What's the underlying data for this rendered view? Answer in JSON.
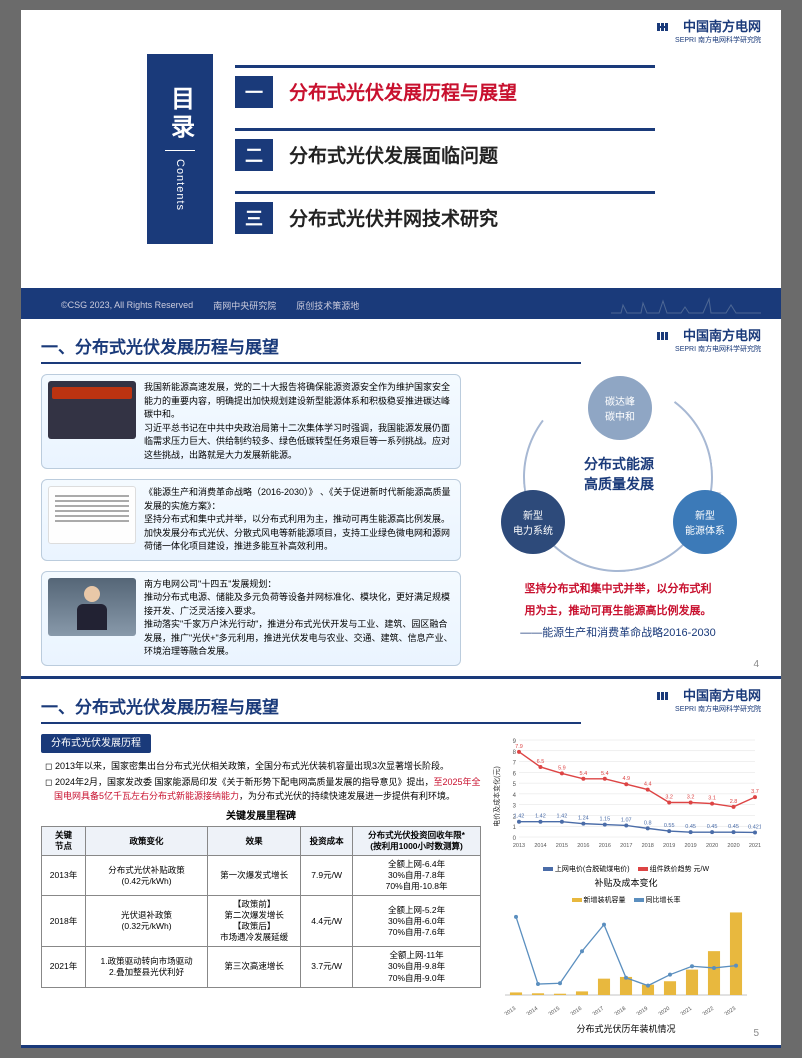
{
  "brand": {
    "name": "中国南方电网",
    "sub": "SEPRI 南方电网科学研究院"
  },
  "slide1": {
    "toc_han": "目录",
    "toc_eng": "Contents",
    "items": [
      {
        "num": "一",
        "label": "分布式光伏发展历程与展望",
        "color": "#c8102e"
      },
      {
        "num": "二",
        "label": "分布式光伏发展面临问题",
        "color": "#222222"
      },
      {
        "num": "三",
        "label": "分布式光伏并网技术研究",
        "color": "#222222"
      }
    ],
    "footer": {
      "copyright": "©CSG 2023, All Rights Reserved",
      "org1": "南网中央研究院",
      "org2": "原创技术策源地"
    }
  },
  "slide2": {
    "title": "一、分布式光伏发展历程与展望",
    "cards": [
      {
        "p1": "我国新能源高速发展，党的二十大报告将确保能源资源安全作为维护国家安全能力的重要内容，明确提出加快规划建设新型能源体系和积极稳妥推进碳达峰碳中和。",
        "p2": "习近平总书记在中共中央政治局第十二次集体学习时强调，我国能源发展仍面临需求压力巨大、供给制约较多、绿色低碳转型任务艰巨等一系列挑战。应对这些挑战，出路就是大力发展新能源。"
      },
      {
        "p1": "《能源生产和消费革命战略（2016-2030）》 、《关于促进新时代新能源高质量发展的实施方案》：",
        "p2": "坚持分布式和集中式并举，以分布式利用为主，推动可再生能源高比例发展。",
        "p3": "加快发展分布式光伏、分散式风电等新能源项目，支持工业绿色微电网和源网荷储一体化项目建设，推进多能互补高效利用。"
      },
      {
        "p1": "南方电网公司\"十四五\"发展规划：",
        "p2": "推动分布式电源、储能及多元负荷等设备并网标准化、模块化，更好满足规模接开发、广泛灵活接入要求。",
        "p3": "推动落实\"千家万户沐光行动\"，推进分布式光伏开发与工业、建筑、园区融合发展，推广\"光伏+\"多元利用，推进光伏发电与农业、交通、建筑、信息产业、环境治理等融合发展。"
      }
    ],
    "diagram": {
      "center": "分布式能源\n高质量发展",
      "nodes": [
        {
          "label": "碳达峰\n碳中和",
          "color": "#8fa6c4"
        },
        {
          "label": "新型\n电力系统",
          "color": "#2d4a7a"
        },
        {
          "label": "新型\n能源体系",
          "color": "#3c7ab8"
        }
      ],
      "caption1": "坚持分布式和集中式并举，以分布式利",
      "caption2": "用为主，推动可再生能源高比例发展。",
      "caption3": "——能源生产和消费革命战略2016-2030"
    },
    "page": "4"
  },
  "slide3": {
    "title": "一、分布式光伏发展历程与展望",
    "tag": "分布式光伏发展历程",
    "para1a": "2013年以来，国家密集出台分布式光伏相关政策，全国分布式光伏装机容量出现3次显著增长阶段。",
    "para2a": "2024年2月，国家发改委 国家能源局印发《关于新形势下配电网高质量发展的指导意见》提出，",
    "para2b": "至2025年全国电网具备5亿千瓦左右分布式新能源接纳能力",
    "para2c": "，为分布式光伏的持续快速发展进一步提供有利环境。",
    "table_title": "关键发展里程碑",
    "table": {
      "headers": [
        "关键\n节点",
        "政策变化",
        "效果",
        "投资成本",
        "分布式光伏投资回收年限*\n(按利用1000小时数测算)"
      ],
      "rows": [
        [
          "2013年",
          "分布式光伏补贴政策\n(0.42元/kWh)",
          "第一次爆发式增长",
          "7.9元/W",
          "全额上网-6.4年\n30%自用-7.8年\n70%自用-10.8年"
        ],
        [
          "2018年",
          "光伏退补政策\n(0.32元/kWh)",
          "【政策前】\n第二次爆发增长\n【政策后】\n市场遇冷发展延缓",
          "4.4元/W",
          "全额上网-5.2年\n30%自用-6.0年\n70%自用-7.6年"
        ],
        [
          "2021年",
          "1.政策驱动转向市场驱动\n2.叠加整县光伏利好",
          "第三次高速增长",
          "3.7元/W",
          "全额上网-11年\n30%自用-9.8年\n70%自用-9.0年"
        ]
      ]
    },
    "chart1": {
      "title": "补贴及成本变化",
      "ylabel": "电价及成本变化(元)",
      "years": [
        "2013",
        "2014",
        "2015",
        "2016",
        "2016",
        "2017",
        "2018",
        "2019",
        "2019",
        "2020",
        "2020",
        "2021"
      ],
      "series_a": {
        "name": "上网电价(合脱硫煤电价)",
        "color": "#4a6ca8",
        "values": [
          1.42,
          1.42,
          1.42,
          1.24,
          1.15,
          1.07,
          0.8,
          0.55,
          0.45,
          0.45,
          0.45,
          0.421
        ]
      },
      "series_b": {
        "name": "组件跌价趋势 元/W",
        "color": "#d44",
        "values": [
          7.9,
          6.5,
          5.9,
          5.4,
          5.4,
          4.9,
          4.4,
          3.2,
          3.2,
          3.1,
          2.8,
          3.7
        ]
      },
      "ylim": [
        0,
        9
      ],
      "grid_color": "#e0e0e0"
    },
    "chart2": {
      "title": "分布式光伏历年装机情况",
      "legend_a": {
        "name": "新增装机容量",
        "color": "#e8b83e"
      },
      "legend_b": {
        "name": "同比增长率",
        "color": "#5b8fbf"
      },
      "years": [
        "2013",
        "2014",
        "2015",
        "2016",
        "2017",
        "2018",
        "2019",
        "2020",
        "2021",
        "2022",
        "2023"
      ],
      "bars": [
        3,
        2,
        1.5,
        4.2,
        19,
        21,
        12,
        16,
        29.5,
        51,
        96
      ],
      "line": [
        400,
        -30,
        -25,
        180,
        350,
        10,
        -40,
        30,
        84,
        73,
        88
      ],
      "bar_max": 100,
      "line_min": -100,
      "line_max": 450
    },
    "page": "5"
  },
  "colors": {
    "navy": "#1a3a7a",
    "red": "#c8102e",
    "paper": "#ffffff"
  }
}
